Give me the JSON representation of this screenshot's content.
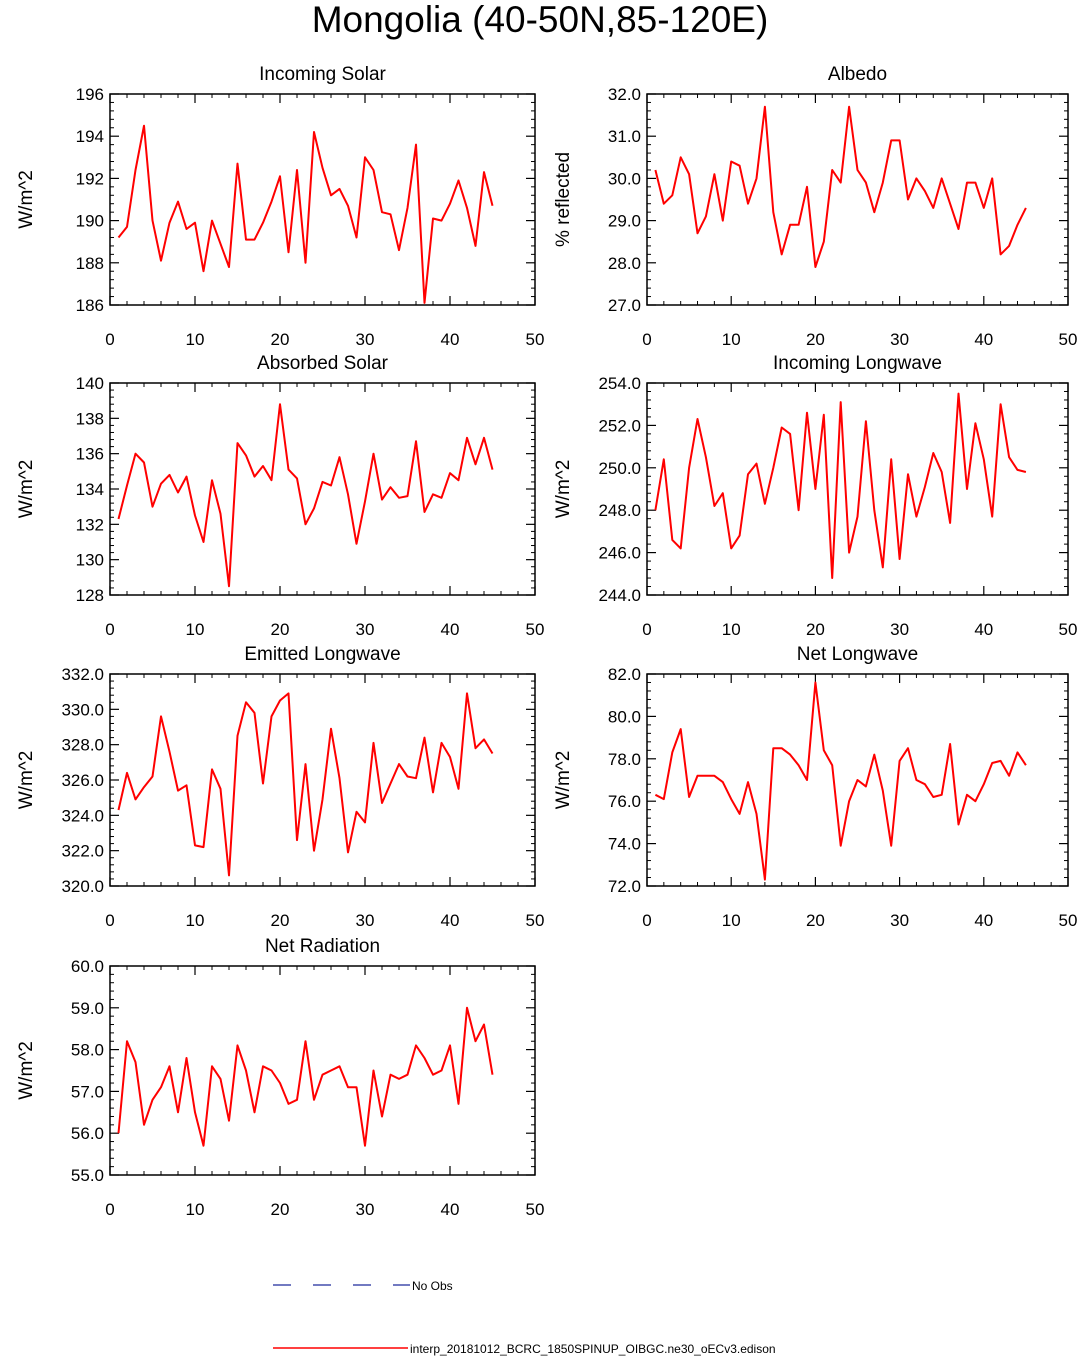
{
  "page_title": "Mongolia (40-50N,85-120E)",
  "legend": {
    "obs_label": "No Obs",
    "obs_color": "#1f2a9c",
    "model_label": "interp_20181012_BCRC_1850SPINUP_OIBGC.ne30_oECv3.edison",
    "model_color": "#ff0000"
  },
  "chart_data": [
    {
      "type": "line",
      "title": "Incoming Solar",
      "ylabel": "W/m^2",
      "xlim": [
        0,
        50
      ],
      "ylim": [
        186,
        196
      ],
      "xticks": [
        0,
        10,
        20,
        30,
        40,
        50
      ],
      "yticks": [
        186,
        188,
        190,
        192,
        194,
        196
      ],
      "ytick_labels": [
        "186",
        "188",
        "190",
        "192",
        "194",
        "196"
      ],
      "series": [
        {
          "x": [
            1,
            2,
            3,
            4,
            5,
            6,
            7,
            8,
            9,
            10,
            11,
            12,
            13,
            14,
            15,
            16,
            17,
            18,
            19,
            20,
            21,
            22,
            23,
            24,
            25,
            26,
            27,
            28,
            29,
            30,
            31,
            32,
            33,
            34,
            35,
            36,
            37,
            38,
            39,
            40,
            41,
            42,
            43,
            44,
            45
          ],
          "values": [
            189.2,
            189.7,
            192.4,
            194.5,
            190.0,
            188.1,
            189.9,
            190.9,
            189.6,
            189.9,
            187.6,
            190.0,
            188.9,
            187.8,
            192.7,
            189.1,
            189.1,
            189.9,
            190.9,
            192.1,
            188.5,
            192.4,
            188.0,
            194.2,
            192.5,
            191.2,
            191.5,
            190.7,
            189.2,
            193.0,
            192.4,
            190.4,
            190.3,
            188.6,
            190.6,
            193.6,
            186.1,
            190.1,
            190.0,
            190.8,
            191.9,
            190.6,
            188.8,
            192.3,
            190.7
          ]
        }
      ]
    },
    {
      "type": "line",
      "title": "Albedo",
      "ylabel": "% reflected",
      "xlim": [
        0,
        50
      ],
      "ylim": [
        27,
        32
      ],
      "xticks": [
        0,
        10,
        20,
        30,
        40,
        50
      ],
      "yticks": [
        27,
        28,
        29,
        30,
        31,
        32
      ],
      "ytick_labels": [
        "27.0",
        "28.0",
        "29.0",
        "30.0",
        "31.0",
        "32.0"
      ],
      "series": [
        {
          "x": [
            1,
            2,
            3,
            4,
            5,
            6,
            7,
            8,
            9,
            10,
            11,
            12,
            13,
            14,
            15,
            16,
            17,
            18,
            19,
            20,
            21,
            22,
            23,
            24,
            25,
            26,
            27,
            28,
            29,
            30,
            31,
            32,
            33,
            34,
            35,
            36,
            37,
            38,
            39,
            40,
            41,
            42,
            43,
            44,
            45
          ],
          "values": [
            30.2,
            29.4,
            29.6,
            30.5,
            30.1,
            28.7,
            29.1,
            30.1,
            29.0,
            30.4,
            30.3,
            29.4,
            30.0,
            31.7,
            29.2,
            28.2,
            28.9,
            28.9,
            29.8,
            27.9,
            28.5,
            30.2,
            29.9,
            31.7,
            30.2,
            29.9,
            29.2,
            29.9,
            30.9,
            30.9,
            29.5,
            30.0,
            29.7,
            29.3,
            30.0,
            29.4,
            28.8,
            29.9,
            29.9,
            29.3,
            30.0,
            28.2,
            28.4,
            28.9,
            29.3
          ]
        }
      ]
    },
    {
      "type": "line",
      "title": "Absorbed Solar",
      "ylabel": "W/m^2",
      "xlim": [
        0,
        50
      ],
      "ylim": [
        128,
        140
      ],
      "xticks": [
        0,
        10,
        20,
        30,
        40,
        50
      ],
      "yticks": [
        128,
        130,
        132,
        134,
        136,
        138,
        140
      ],
      "ytick_labels": [
        "128",
        "130",
        "132",
        "134",
        "136",
        "138",
        "140"
      ],
      "series": [
        {
          "x": [
            1,
            2,
            3,
            4,
            5,
            6,
            7,
            8,
            9,
            10,
            11,
            12,
            13,
            14,
            15,
            16,
            17,
            18,
            19,
            20,
            21,
            22,
            23,
            24,
            25,
            26,
            27,
            28,
            29,
            30,
            31,
            32,
            33,
            34,
            35,
            36,
            37,
            38,
            39,
            40,
            41,
            42,
            43,
            44,
            45
          ],
          "values": [
            132.3,
            134.2,
            136.0,
            135.5,
            133.0,
            134.3,
            134.8,
            133.8,
            134.7,
            132.5,
            131.0,
            134.5,
            132.6,
            128.5,
            136.6,
            135.9,
            134.7,
            135.3,
            134.5,
            138.8,
            135.1,
            134.6,
            132.0,
            132.9,
            134.4,
            134.2,
            135.8,
            133.7,
            130.9,
            133.3,
            136.0,
            133.4,
            134.1,
            133.5,
            133.6,
            136.7,
            132.7,
            133.7,
            133.5,
            134.9,
            134.5,
            136.9,
            135.4,
            136.9,
            135.1
          ]
        }
      ]
    },
    {
      "type": "line",
      "title": "Incoming Longwave",
      "ylabel": "W/m^2",
      "xlim": [
        0,
        50
      ],
      "ylim": [
        244,
        254
      ],
      "xticks": [
        0,
        10,
        20,
        30,
        40,
        50
      ],
      "yticks": [
        244,
        246,
        248,
        250,
        252,
        254
      ],
      "ytick_labels": [
        "244.0",
        "246.0",
        "248.0",
        "250.0",
        "252.0",
        "254.0"
      ],
      "series": [
        {
          "x": [
            1,
            2,
            3,
            4,
            5,
            6,
            7,
            8,
            9,
            10,
            11,
            12,
            13,
            14,
            15,
            16,
            17,
            18,
            19,
            20,
            21,
            22,
            23,
            24,
            25,
            26,
            27,
            28,
            29,
            30,
            31,
            32,
            33,
            34,
            35,
            36,
            37,
            38,
            39,
            40,
            41,
            42,
            43,
            44,
            45
          ],
          "values": [
            248.0,
            250.4,
            246.6,
            246.2,
            250.0,
            252.3,
            250.5,
            248.2,
            248.8,
            246.2,
            246.8,
            249.7,
            250.2,
            248.3,
            250.0,
            251.9,
            251.6,
            248.0,
            252.6,
            249.0,
            252.5,
            244.8,
            253.1,
            246.0,
            247.7,
            252.2,
            248.0,
            245.3,
            250.4,
            245.7,
            249.7,
            247.7,
            249.1,
            250.7,
            249.8,
            247.4,
            253.5,
            249.0,
            252.1,
            250.4,
            247.7,
            253.0,
            250.5,
            249.9,
            249.8
          ]
        }
      ]
    },
    {
      "type": "line",
      "title": "Emitted Longwave",
      "ylabel": "W/m^2",
      "xlim": [
        0,
        50
      ],
      "ylim": [
        320,
        332
      ],
      "xticks": [
        0,
        10,
        20,
        30,
        40,
        50
      ],
      "yticks": [
        320,
        322,
        324,
        326,
        328,
        330,
        332
      ],
      "ytick_labels": [
        "320.0",
        "322.0",
        "324.0",
        "326.0",
        "328.0",
        "330.0",
        "332.0"
      ],
      "series": [
        {
          "x": [
            1,
            2,
            3,
            4,
            5,
            6,
            7,
            8,
            9,
            10,
            11,
            12,
            13,
            14,
            15,
            16,
            17,
            18,
            19,
            20,
            21,
            22,
            23,
            24,
            25,
            26,
            27,
            28,
            29,
            30,
            31,
            32,
            33,
            34,
            35,
            36,
            37,
            38,
            39,
            40,
            41,
            42,
            43,
            44,
            45
          ],
          "values": [
            324.3,
            326.4,
            324.9,
            325.6,
            326.2,
            329.6,
            327.6,
            325.4,
            325.7,
            322.3,
            322.2,
            326.6,
            325.5,
            320.6,
            328.5,
            330.4,
            329.8,
            325.8,
            329.6,
            330.5,
            330.9,
            322.6,
            326.9,
            322.0,
            324.9,
            328.9,
            326.1,
            321.9,
            324.2,
            323.6,
            328.1,
            324.7,
            325.8,
            326.9,
            326.2,
            326.1,
            328.4,
            325.3,
            328.1,
            327.3,
            325.5,
            330.9,
            327.8,
            328.3,
            327.5
          ]
        }
      ]
    },
    {
      "type": "line",
      "title": "Net Longwave",
      "ylabel": "W/m^2",
      "xlim": [
        0,
        50
      ],
      "ylim": [
        72,
        82
      ],
      "xticks": [
        0,
        10,
        20,
        30,
        40,
        50
      ],
      "yticks": [
        72,
        74,
        76,
        78,
        80,
        82
      ],
      "ytick_labels": [
        "72.0",
        "74.0",
        "76.0",
        "78.0",
        "80.0",
        "82.0"
      ],
      "series": [
        {
          "x": [
            1,
            2,
            3,
            4,
            5,
            6,
            7,
            8,
            9,
            10,
            11,
            12,
            13,
            14,
            15,
            16,
            17,
            18,
            19,
            20,
            21,
            22,
            23,
            24,
            25,
            26,
            27,
            28,
            29,
            30,
            31,
            32,
            33,
            34,
            35,
            36,
            37,
            38,
            39,
            40,
            41,
            42,
            43,
            44,
            45
          ],
          "values": [
            76.3,
            76.1,
            78.3,
            79.4,
            76.2,
            77.2,
            77.2,
            77.2,
            76.9,
            76.1,
            75.4,
            76.9,
            75.4,
            72.3,
            78.5,
            78.5,
            78.2,
            77.7,
            77.0,
            81.6,
            78.4,
            77.7,
            73.9,
            76.0,
            77.0,
            76.7,
            78.2,
            76.5,
            73.9,
            77.9,
            78.5,
            77.0,
            76.8,
            76.2,
            76.3,
            78.7,
            74.9,
            76.3,
            76.0,
            76.8,
            77.8,
            77.9,
            77.2,
            78.3,
            77.7
          ]
        }
      ]
    },
    {
      "type": "line",
      "title": "Net Radiation",
      "ylabel": "W/m^2",
      "xlim": [
        0,
        50
      ],
      "ylim": [
        55,
        60
      ],
      "xticks": [
        0,
        10,
        20,
        30,
        40,
        50
      ],
      "yticks": [
        55,
        56,
        57,
        58,
        59,
        60
      ],
      "ytick_labels": [
        "55.0",
        "56.0",
        "57.0",
        "58.0",
        "59.0",
        "60.0"
      ],
      "series": [
        {
          "x": [
            1,
            2,
            3,
            4,
            5,
            6,
            7,
            8,
            9,
            10,
            11,
            12,
            13,
            14,
            15,
            16,
            17,
            18,
            19,
            20,
            21,
            22,
            23,
            24,
            25,
            26,
            27,
            28,
            29,
            30,
            31,
            32,
            33,
            34,
            35,
            36,
            37,
            38,
            39,
            40,
            41,
            42,
            43,
            44,
            45
          ],
          "values": [
            56.0,
            58.2,
            57.7,
            56.2,
            56.8,
            57.1,
            57.6,
            56.5,
            57.8,
            56.5,
            55.7,
            57.6,
            57.3,
            56.3,
            58.1,
            57.5,
            56.5,
            57.6,
            57.5,
            57.2,
            56.7,
            56.8,
            58.2,
            56.8,
            57.4,
            57.5,
            57.6,
            57.1,
            57.1,
            55.7,
            57.5,
            56.4,
            57.4,
            57.3,
            57.4,
            58.1,
            57.8,
            57.4,
            57.5,
            58.1,
            56.7,
            59.0,
            58.2,
            58.6,
            57.4
          ]
        }
      ]
    }
  ]
}
